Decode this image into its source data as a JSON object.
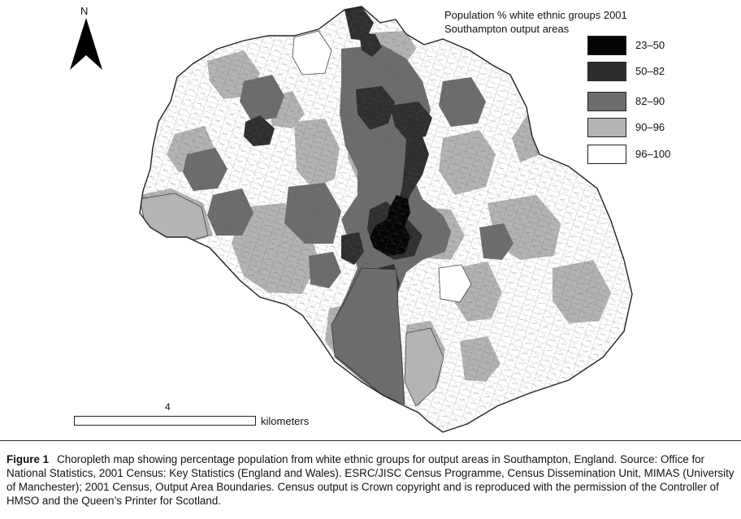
{
  "map": {
    "north_label": "N",
    "legend_title_line1": "Population % white ethnic groups 2001",
    "legend_title_line2": "Southampton output areas",
    "legend": [
      {
        "label": "23–50",
        "color": "#050505"
      },
      {
        "label": "50–82",
        "color": "#2e2e2e"
      },
      {
        "label": "82–90",
        "color": "#6d6d6d"
      },
      {
        "label": "90–96",
        "color": "#b4b4b4"
      },
      {
        "label": "96–100",
        "color": "#ffffff"
      }
    ],
    "scale": {
      "value": "4",
      "unit": "kilometers"
    }
  },
  "caption": {
    "label": "Figure 1",
    "text": "Choropleth map showing percentage population from white ethnic groups for output areas in Southampton, England. Source: Office for National Statistics, 2001 Census: Key Statistics (England and Wales). ESRC/JISC Census Programme, Census Dissemination Unit, MIMAS (University of Manchester); 2001 Census, Output Area Boundaries. Census output is Crown copyright and is reproduced with the permission of the Controller of HMSO and the Queen’s Printer for Scotland."
  }
}
